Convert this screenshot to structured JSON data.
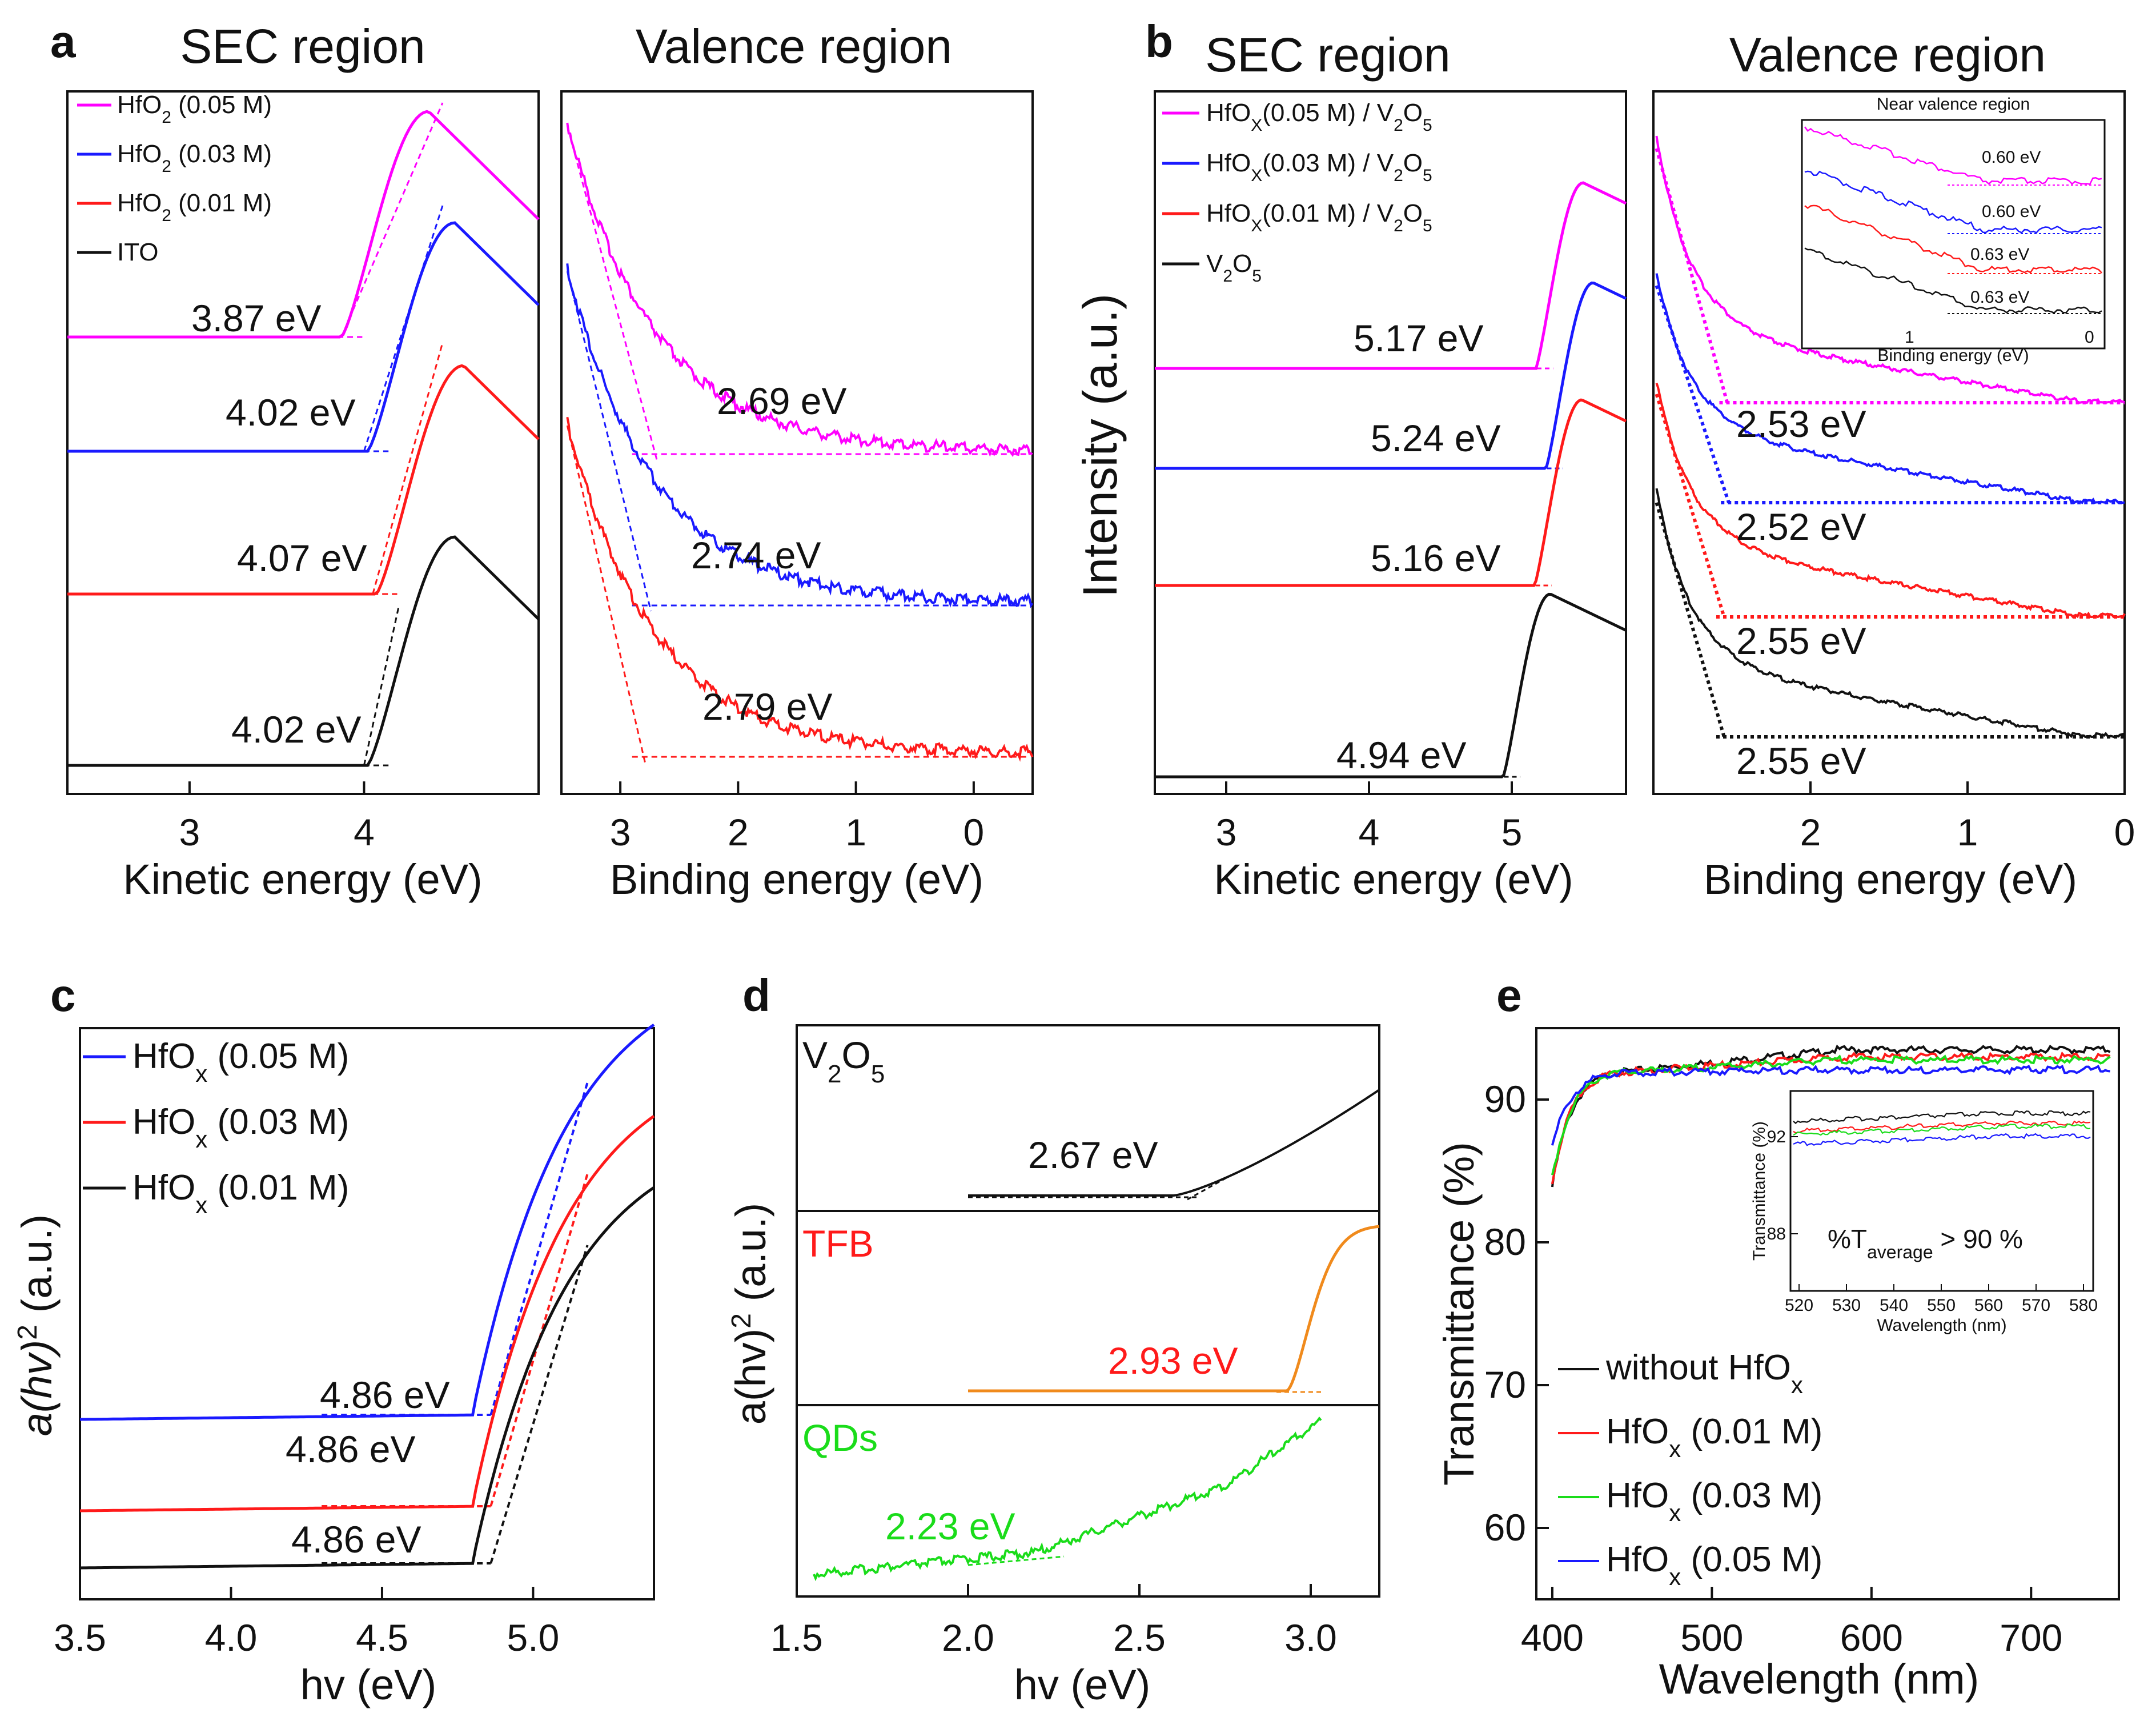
{
  "colors": {
    "magenta": "#ff00ff",
    "blue": "#1a1aff",
    "red": "#ff1a1a",
    "black": "#111111",
    "orange": "#f08a1c",
    "green": "#1adc1a"
  },
  "panel_letters": [
    "a",
    "b",
    "c",
    "d",
    "e"
  ],
  "chart_data": [
    {
      "id": "a-sec",
      "type": "line",
      "panel": "a",
      "title": "SEC region",
      "xlabel": "Kinetic energy (eV)",
      "xlim": [
        2.3,
        5.0
      ],
      "xticks": [
        "3",
        "4"
      ],
      "xtickvals": [
        3,
        4
      ],
      "legend": [
        {
          "text": "HfO",
          "sub": "2",
          "rest": " (0.05 M)",
          "color": "magenta"
        },
        {
          "text": "HfO",
          "sub": "2",
          "rest": " (0.03 M)",
          "color": "blue"
        },
        {
          "text": "HfO",
          "sub": "2",
          "rest": " (0.01 M)",
          "color": "red"
        },
        {
          "text": "ITO",
          "sub": "",
          "rest": "",
          "color": "black"
        }
      ],
      "labels": [
        "3.87 eV",
        "4.02 eV",
        "4.07 eV",
        "4.02 eV"
      ]
    },
    {
      "id": "a-val",
      "type": "line",
      "panel": "a",
      "title": "Valence region",
      "xlabel": "Binding energy (eV)",
      "xlim": [
        3.5,
        -0.5
      ],
      "xticks": [
        "3",
        "2",
        "1",
        "0"
      ],
      "xtickvals": [
        3,
        2,
        1,
        0
      ],
      "labels": [
        "2.69 eV",
        "2.74 eV",
        "2.79 eV"
      ]
    },
    {
      "id": "b-sec",
      "type": "line",
      "panel": "b",
      "title": "SEC region",
      "ylabel": "Intensity (a.u.)",
      "xlabel": "Kinetic energy (eV)",
      "xlim": [
        2.5,
        5.8
      ],
      "xticks": [
        "3",
        "4",
        "5"
      ],
      "xtickvals": [
        3,
        4,
        5
      ],
      "legend": [
        {
          "text": "HfO",
          "sub": "X",
          "rest": "(0.05 M) / V",
          "sub2": "2",
          "rest2": "O",
          "sub3": "5",
          "color": "magenta"
        },
        {
          "text": "HfO",
          "sub": "X",
          "rest": "(0.03 M) / V",
          "sub2": "2",
          "rest2": "O",
          "sub3": "5",
          "color": "blue"
        },
        {
          "text": "HfO",
          "sub": "X",
          "rest": "(0.01 M) / V",
          "sub2": "2",
          "rest2": "O",
          "sub3": "5",
          "color": "red"
        },
        {
          "text": "V",
          "sub": "2",
          "rest": "O",
          "sub2": "5",
          "rest2": "",
          "sub3": "",
          "color": "black"
        }
      ],
      "labels": [
        "5.17 eV",
        "5.24 eV",
        "5.16 eV",
        "4.94 eV"
      ]
    },
    {
      "id": "b-val",
      "type": "line",
      "panel": "b",
      "title": "Valence region",
      "xlabel": "Binding energy (eV)",
      "xlim": [
        3.0,
        0.0
      ],
      "xticks": [
        "2",
        "1",
        "0"
      ],
      "xtickvals": [
        2,
        1,
        0
      ],
      "labels": [
        "2.53 eV",
        "2.52 eV",
        "2.55 eV",
        "2.55 eV"
      ],
      "inset": {
        "title": "Near valence region",
        "xlabel": "Binding energy (eV)",
        "xticks": [
          "1",
          "0"
        ],
        "labels": [
          "0.60 eV",
          "0.60 eV",
          "0.63 eV",
          "0.63 eV"
        ]
      }
    },
    {
      "id": "c",
      "type": "line",
      "panel": "c",
      "xlabel": "hv (eV)",
      "ylabel": "a(hv)",
      "ylabel_sup": "2",
      "ylabel_rest": " (a.u.)",
      "xlim": [
        3.5,
        5.4
      ],
      "xticks": [
        "3.5",
        "4.0",
        "4.5",
        "5.0"
      ],
      "xtickvals": [
        3.5,
        4.0,
        4.5,
        5.0
      ],
      "legend": [
        {
          "text": "HfO",
          "sub": "x",
          "rest": " (0.05 M)",
          "color": "blue"
        },
        {
          "text": "HfO",
          "sub": "x",
          "rest": " (0.03 M)",
          "color": "red"
        },
        {
          "text": "HfO",
          "sub": "x",
          "rest": " (0.01 M)",
          "color": "black"
        }
      ],
      "labels": [
        "4.86 eV",
        "4.86 eV",
        "4.86 eV"
      ]
    },
    {
      "id": "d",
      "type": "line",
      "panel": "d",
      "xlabel": "hv (eV)",
      "ylabel": "a(hv)",
      "ylabel_sup": "2",
      "ylabel_rest": " (a.u.)",
      "xlim": [
        1.5,
        3.2
      ],
      "xticks": [
        "1.5",
        "2.0",
        "2.5",
        "3.0"
      ],
      "xtickvals": [
        1.5,
        2.0,
        2.5,
        3.0
      ],
      "subpanels": [
        {
          "name": "V",
          "sub": "2",
          "rest": "O",
          "sub2": "5",
          "color": "black",
          "label": "2.67 eV",
          "gap": 2.67
        },
        {
          "name": "TFB",
          "color": "red",
          "line_color": "orange",
          "label": "2.93 eV",
          "gap": 2.93
        },
        {
          "name": "QDs",
          "color": "green",
          "label": "2.23 eV",
          "gap": 2.23
        }
      ]
    },
    {
      "id": "e",
      "type": "line",
      "panel": "e",
      "xlabel": "Wavelength (nm)",
      "ylabel": "Transmittance (%)",
      "xlim": [
        390,
        755
      ],
      "ylim": [
        55,
        95
      ],
      "xticks": [
        "400",
        "500",
        "600",
        "700"
      ],
      "xtickvals": [
        400,
        500,
        600,
        700
      ],
      "yticks": [
        "60",
        "70",
        "80",
        "90"
      ],
      "ytickvals": [
        60,
        70,
        80,
        90
      ],
      "series": [
        {
          "name": "without HfO",
          "sub": "x",
          "rest": "",
          "color": "black",
          "plateau": 93.6,
          "start": 84.0
        },
        {
          "name": "HfO",
          "sub": "x",
          "rest": " (0.01 M)",
          "color": "red",
          "plateau": 93.1,
          "start": 84.3
        },
        {
          "name": "HfO",
          "sub": "x",
          "rest": " (0.03 M)",
          "color": "green",
          "plateau": 92.9,
          "start": 84.6
        },
        {
          "name": "HfO",
          "sub": "x",
          "rest": " (0.05 M)",
          "color": "blue",
          "plateau": 92.2,
          "start": 86.8
        }
      ],
      "inset": {
        "xlabel": "Wavelength (nm)",
        "ylabel": "Transmittance (%)",
        "xticks": [
          "520",
          "530",
          "540",
          "550",
          "560",
          "570",
          "580"
        ],
        "yticks": [
          "92",
          "88"
        ],
        "note_pre": "%T",
        "note_sub": "average",
        "note_post": " > 90 %"
      }
    }
  ]
}
